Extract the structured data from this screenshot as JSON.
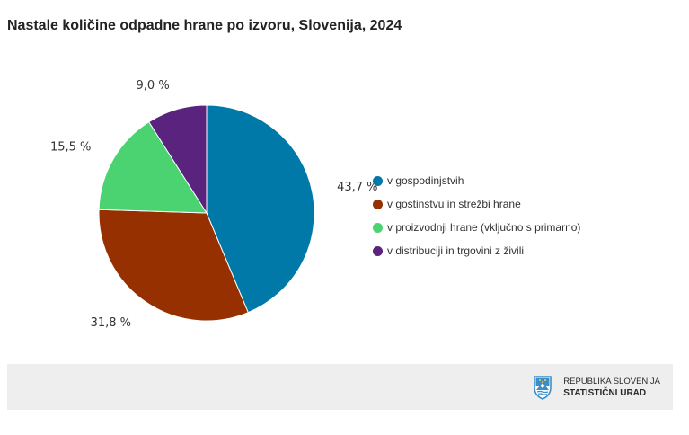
{
  "chart_data": {
    "type": "pie",
    "title": "Nastale količine odpadne hrane po izvoru, Slovenija, 2024",
    "unit": "%",
    "slices": [
      {
        "label": "v gospodinjstvih",
        "value": 43.7,
        "value_label": "43,7 %",
        "color": "#0079a8"
      },
      {
        "label": "v gostinstvu in strežbi hrane",
        "value": 31.8,
        "value_label": "31,8 %",
        "color": "#963000"
      },
      {
        "label": "v proizvodnji hrane (vključno s primarno)",
        "value": 15.5,
        "value_label": "15,5 %",
        "color": "#4bd271"
      },
      {
        "label": "v distribuciji in trgovini z živili",
        "value": 9.0,
        "value_label": "9,0 %",
        "color": "#59237e"
      }
    ],
    "legend_position": "right"
  },
  "footer": {
    "logo_line1": "REPUBLIKA SLOVENIJA",
    "logo_line2": "STATISTIČNI URAD",
    "logo_icon": "slovenia-coat-of-arms-icon"
  }
}
